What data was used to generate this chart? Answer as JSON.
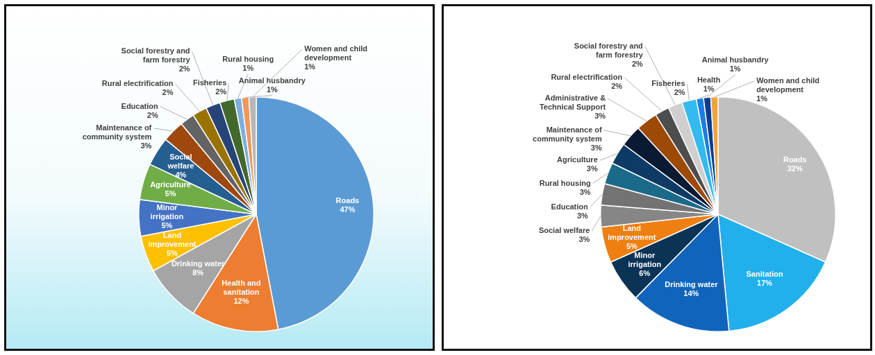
{
  "chart_data": [
    {
      "type": "pie",
      "categories": [
        "Roads",
        "Health and sanitation",
        "Drinking water",
        "Land improvement",
        "Minor irrigation",
        "Agriculture",
        "Social welfare",
        "Maintenance of community system",
        "Education",
        "Rural electrification",
        "Social forestry and farm forestry",
        "Fisheries",
        "Rural housing",
        "Animal husbandry",
        "Women and child development"
      ],
      "values": [
        47,
        12,
        8,
        5,
        5,
        5,
        4,
        3,
        2,
        2,
        2,
        2,
        1,
        1,
        1
      ],
      "value_labels": [
        "47%",
        "12%",
        "8%",
        "5%",
        "5%",
        "5%",
        "4%",
        "3%",
        "2%",
        "2%",
        "2%",
        "2%",
        "1%",
        "1%",
        "1%"
      ],
      "colors": [
        "#5b9bd5",
        "#ed7d31",
        "#a5a5a5",
        "#ffc000",
        "#4472c4",
        "#70ad47",
        "#255e91",
        "#9e480e",
        "#636363",
        "#997300",
        "#264478",
        "#43682b",
        "#7cafdd",
        "#f1975a",
        "#b7b7b7"
      ]
    },
    {
      "type": "pie",
      "categories": [
        "Roads",
        "Sanitation",
        "Drinking water",
        "Minor irrigation",
        "Land improvement",
        "Social welfare",
        "Education",
        "Rural housing",
        "Agriculture",
        "Maintenance of community system",
        "Administrative & Technical Support",
        "Rural electrification",
        "Social forestry and farm forestry",
        "Fisheries",
        "Health",
        "Animal husbandry",
        "Women and child development"
      ],
      "values": [
        32,
        17,
        14,
        6,
        5,
        3,
        3,
        3,
        3,
        3,
        3,
        2,
        2,
        2,
        1,
        1,
        1
      ],
      "value_labels": [
        "32%",
        "17%",
        "14%",
        "6%",
        "5%",
        "3%",
        "3%",
        "3%",
        "3%",
        "3%",
        "3%",
        "2%",
        "2%",
        "2%",
        "1%",
        "1%",
        "1%"
      ],
      "colors": [
        "#c0c0c0",
        "#21b0ec",
        "#1064bc",
        "#0b3356",
        "#ef7f10",
        "#868686",
        "#737373",
        "#1b6a8a",
        "#0d3b66",
        "#0b1a33",
        "#9c4a06",
        "#4d4d4d",
        "#cfcfcf",
        "#33bbf0",
        "#1a7ee6",
        "#0b3d91",
        "#f2a33a"
      ]
    }
  ]
}
